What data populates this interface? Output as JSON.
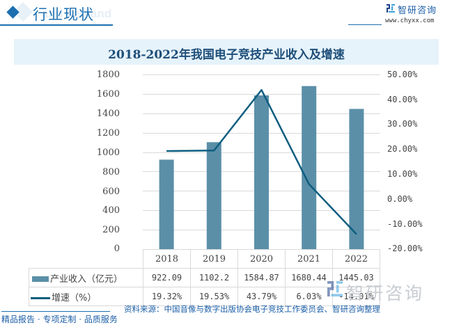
{
  "header": {
    "section_title": "行业现状",
    "section_title_bg": "and demand",
    "brand_name": "智研咨询",
    "brand_url": "www.chyxx.com"
  },
  "colors": {
    "accent": "#1c6fb0",
    "bar": "#5b8fa8",
    "line": "#0d5e80",
    "title_bg": "#e6f3fb",
    "title_text": "#1e4e79"
  },
  "chart_data": {
    "type": "bar",
    "title": "2018-2022年我国电子竞技产业收入及增速",
    "categories": [
      "2018",
      "2019",
      "2020",
      "2021",
      "2022"
    ],
    "series": [
      {
        "name": "产业收入（亿元）",
        "type": "bar",
        "axis": "left",
        "values": [
          922.09,
          1102.2,
          1584.87,
          1680.44,
          1445.03
        ],
        "labels": [
          "922.09",
          "1102.2",
          "1584.87",
          "1680.44",
          "1445.03"
        ]
      },
      {
        "name": "增速（%）",
        "type": "line",
        "axis": "right",
        "values": [
          19.32,
          19.53,
          43.79,
          6.03,
          -14.01
        ],
        "labels": [
          "19.32%",
          "19.53%",
          "43.79%",
          "6.03%",
          "-14.01%"
        ]
      }
    ],
    "left_axis": {
      "ylim": [
        0,
        1800
      ],
      "ticks": [
        "1800",
        "1600",
        "1400",
        "1200",
        "1000",
        "800",
        "600",
        "400",
        "200",
        "0"
      ]
    },
    "right_axis": {
      "ylim": [
        -20,
        50
      ],
      "ticks": [
        "50.00%",
        "40.00%",
        "30.00%",
        "20.00%",
        "10.00%",
        "0.00%",
        "-10.00%",
        "-20.00%"
      ]
    },
    "grid": true,
    "legend_position": "data-table",
    "xlabel": "",
    "ylabel": ""
  },
  "footer": {
    "tagline": "精品报告 · 专项定制 · 品质服务",
    "source": "资料来源：中国音像与数字出版协会电子竞技工作委员会、智研咨询整理",
    "watermark": "智研咨询"
  }
}
